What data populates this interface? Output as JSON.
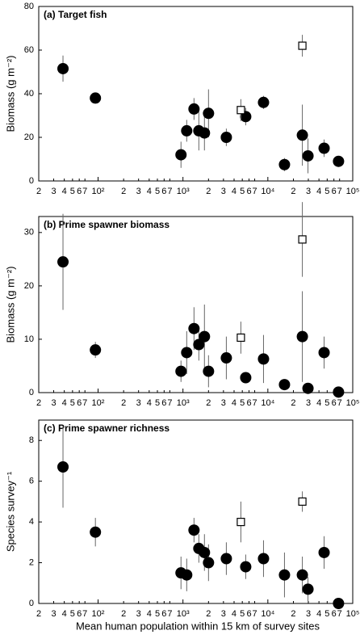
{
  "chart_data": [
    {
      "type": "scatter",
      "title": "(a) Target fish",
      "ylabel": "Biomass (g m⁻²)",
      "xlog": true,
      "xlim": [
        20,
        100000
      ],
      "ylim": [
        0,
        80
      ],
      "yticks": [
        0,
        20,
        40,
        60,
        80
      ],
      "xticks": [
        {
          "value": 20,
          "label": "2"
        },
        {
          "value": 30,
          "label": "3"
        },
        {
          "value": 40,
          "label": "4"
        },
        {
          "value": 50,
          "label": "5"
        },
        {
          "value": 60,
          "label": "6"
        },
        {
          "value": 70,
          "label": "7"
        },
        {
          "value": 100,
          "label": "10²"
        },
        {
          "value": 200,
          "label": "2"
        },
        {
          "value": 300,
          "label": "3"
        },
        {
          "value": 400,
          "label": "4"
        },
        {
          "value": 500,
          "label": "5"
        },
        {
          "value": 600,
          "label": "6"
        },
        {
          "value": 700,
          "label": "7"
        },
        {
          "value": 1000,
          "label": "10³"
        },
        {
          "value": 2000,
          "label": "2"
        },
        {
          "value": 3000,
          "label": "3"
        },
        {
          "value": 4000,
          "label": "4"
        },
        {
          "value": 5000,
          "label": "5"
        },
        {
          "value": 6000,
          "label": "6"
        },
        {
          "value": 7000,
          "label": "7"
        },
        {
          "value": 10000,
          "label": "10⁴"
        },
        {
          "value": 20000,
          "label": "2"
        },
        {
          "value": 30000,
          "label": "3"
        },
        {
          "value": 40000,
          "label": "4"
        },
        {
          "value": 50000,
          "label": "5"
        },
        {
          "value": 60000,
          "label": "6"
        },
        {
          "value": 70000,
          "label": "7"
        },
        {
          "value": 100000,
          "label": "10⁵"
        }
      ],
      "series": [
        {
          "marker": "circle",
          "color": "#000000",
          "x": [
            38.6,
            93,
            948,
            1107,
            1349,
            1538,
            1791,
            2000,
            3243,
            5486,
            8890,
            15700,
            25500,
            29700,
            46000,
            68000
          ],
          "values": [
            51.5,
            38,
            12,
            23,
            33,
            23,
            22,
            31,
            20,
            29.5,
            36,
            7.5,
            21,
            11.5,
            15,
            9
          ],
          "errors": [
            6,
            1.5,
            6,
            5,
            5,
            9,
            8,
            11,
            4,
            4,
            3,
            3,
            14,
            8,
            4,
            2
          ]
        },
        {
          "marker": "square",
          "color": "#000000",
          "x": [
            4810,
            25500
          ],
          "values": [
            32.5,
            62
          ],
          "errors": [
            5,
            5
          ]
        }
      ]
    },
    {
      "type": "scatter",
      "title": "(b) Prime spawner biomass",
      "ylabel": "Biomass (g m⁻²)",
      "xlog": true,
      "xlim": [
        20,
        100000
      ],
      "ylim": [
        0,
        33
      ],
      "yticks": [
        0,
        10,
        20,
        30
      ],
      "xticks": [
        {
          "value": 20,
          "label": "2"
        },
        {
          "value": 30,
          "label": "3"
        },
        {
          "value": 40,
          "label": "4"
        },
        {
          "value": 50,
          "label": "5"
        },
        {
          "value": 60,
          "label": "6"
        },
        {
          "value": 70,
          "label": "7"
        },
        {
          "value": 100,
          "label": "10²"
        },
        {
          "value": 200,
          "label": "2"
        },
        {
          "value": 300,
          "label": "3"
        },
        {
          "value": 400,
          "label": "4"
        },
        {
          "value": 500,
          "label": "5"
        },
        {
          "value": 600,
          "label": "6"
        },
        {
          "value": 700,
          "label": "7"
        },
        {
          "value": 1000,
          "label": "10³"
        },
        {
          "value": 2000,
          "label": "2"
        },
        {
          "value": 3000,
          "label": "3"
        },
        {
          "value": 4000,
          "label": "4"
        },
        {
          "value": 5000,
          "label": "5"
        },
        {
          "value": 6000,
          "label": "6"
        },
        {
          "value": 7000,
          "label": "7"
        },
        {
          "value": 10000,
          "label": "10⁴"
        },
        {
          "value": 20000,
          "label": "2"
        },
        {
          "value": 30000,
          "label": "3"
        },
        {
          "value": 40000,
          "label": "4"
        },
        {
          "value": 50000,
          "label": "5"
        },
        {
          "value": 60000,
          "label": "6"
        },
        {
          "value": 70000,
          "label": "7"
        },
        {
          "value": 100000,
          "label": "10⁵"
        }
      ],
      "series": [
        {
          "marker": "circle",
          "color": "#000000",
          "x": [
            38.6,
            93,
            948,
            1107,
            1349,
            1538,
            1791,
            2000,
            3243,
            5486,
            8890,
            15700,
            25500,
            29700,
            46000,
            68000
          ],
          "values": [
            24.5,
            8,
            4,
            7.5,
            12,
            9,
            10.5,
            4,
            6.5,
            2.8,
            6.3,
            1.5,
            10.5,
            0.8,
            7.5,
            0.1
          ],
          "errors": [
            9,
            1.5,
            2,
            4,
            4,
            3,
            6,
            3,
            4,
            1,
            4.5,
            0.5,
            8.5,
            0.5,
            3,
            0.2
          ]
        },
        {
          "marker": "square",
          "color": "#000000",
          "x": [
            4810,
            25500
          ],
          "values": [
            10.3,
            28.7
          ],
          "errors": [
            3,
            7
          ]
        }
      ]
    },
    {
      "type": "scatter",
      "title": "(c) Prime spawner richness",
      "ylabel": "Species survey⁻¹",
      "xlabel": "Mean human population within 15 km of survey sites",
      "xlog": true,
      "xlim": [
        20,
        100000
      ],
      "ylim": [
        0,
        9
      ],
      "yticks": [
        0,
        2,
        4,
        6,
        8
      ],
      "xticks": [
        {
          "value": 20,
          "label": "2"
        },
        {
          "value": 30,
          "label": "3"
        },
        {
          "value": 40,
          "label": "4"
        },
        {
          "value": 50,
          "label": "5"
        },
        {
          "value": 60,
          "label": "6"
        },
        {
          "value": 70,
          "label": "7"
        },
        {
          "value": 100,
          "label": "10²"
        },
        {
          "value": 200,
          "label": "2"
        },
        {
          "value": 300,
          "label": "3"
        },
        {
          "value": 400,
          "label": "4"
        },
        {
          "value": 500,
          "label": "5"
        },
        {
          "value": 600,
          "label": "6"
        },
        {
          "value": 700,
          "label": "7"
        },
        {
          "value": 1000,
          "label": "10³"
        },
        {
          "value": 2000,
          "label": "2"
        },
        {
          "value": 3000,
          "label": "3"
        },
        {
          "value": 4000,
          "label": "4"
        },
        {
          "value": 5000,
          "label": "5"
        },
        {
          "value": 6000,
          "label": "6"
        },
        {
          "value": 7000,
          "label": "7"
        },
        {
          "value": 10000,
          "label": "10⁴"
        },
        {
          "value": 20000,
          "label": "2"
        },
        {
          "value": 30000,
          "label": "3"
        },
        {
          "value": 40000,
          "label": "4"
        },
        {
          "value": 50000,
          "label": "5"
        },
        {
          "value": 60000,
          "label": "6"
        },
        {
          "value": 70000,
          "label": "7"
        },
        {
          "value": 100000,
          "label": "10⁵"
        }
      ],
      "series": [
        {
          "marker": "circle",
          "color": "#000000",
          "x": [
            38.6,
            93,
            948,
            1107,
            1349,
            1538,
            1791,
            2000,
            3243,
            5486,
            8890,
            15700,
            25500,
            29700,
            46000,
            68000
          ],
          "values": [
            6.7,
            3.5,
            1.5,
            1.4,
            3.6,
            2.7,
            2.5,
            2,
            2.2,
            1.8,
            2.2,
            1.4,
            1.4,
            0.7,
            2.5,
            0
          ],
          "errors": [
            2,
            0.7,
            0.8,
            0.8,
            0.6,
            0.7,
            0.9,
            0.9,
            0.8,
            0.6,
            0.9,
            1.1,
            0.9,
            0.6,
            0.8,
            0
          ]
        },
        {
          "marker": "square",
          "color": "#000000",
          "x": [
            4810,
            25500
          ],
          "values": [
            4,
            5
          ],
          "errors": [
            1,
            0.5
          ]
        }
      ]
    }
  ]
}
